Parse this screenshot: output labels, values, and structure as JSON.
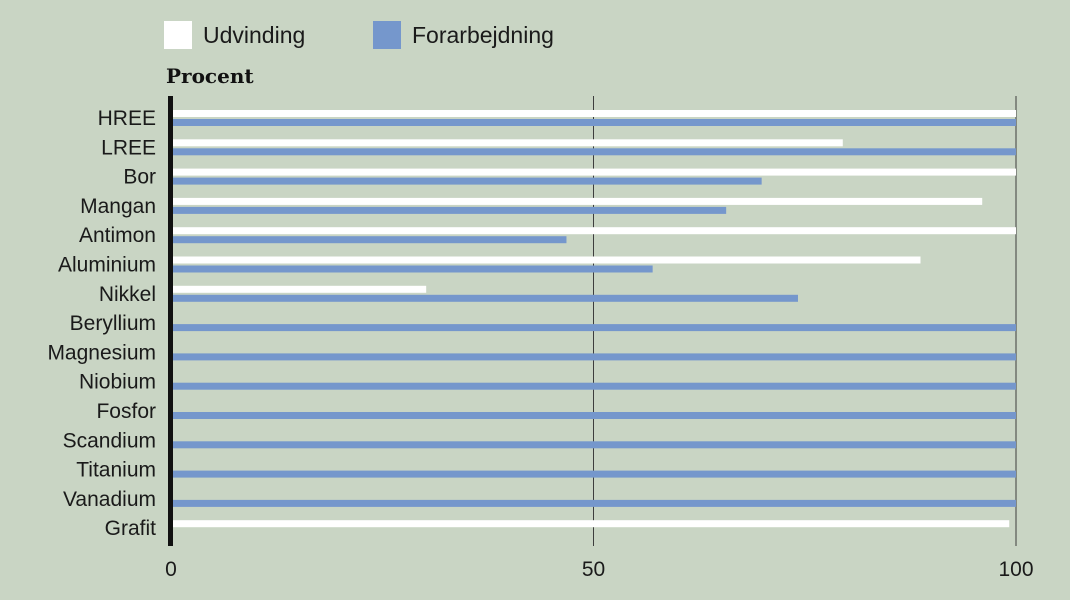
{
  "chart_data": {
    "type": "bar",
    "orientation": "horizontal",
    "ylabel": "Procent",
    "xlim": [
      0,
      100
    ],
    "ticks": [
      "0",
      "50",
      "100"
    ],
    "tick_values": [
      0,
      50,
      100
    ],
    "grid": true,
    "legend_position": "top-left",
    "categories": [
      "HREE",
      "LREE",
      "Bor",
      "Mangan",
      "Antimon",
      "Aluminium",
      "Nikkel",
      "Beryllium",
      "Magnesium",
      "Niobium",
      "Fosfor",
      "Scandium",
      "Titanium",
      "Vanadium",
      "Grafit"
    ],
    "series": [
      {
        "name": "Udvinding",
        "color": "#ffffff",
        "values": [
          100,
          79.5,
          100,
          96,
          100,
          88.7,
          30.2,
          null,
          null,
          null,
          null,
          null,
          null,
          null,
          99.2
        ]
      },
      {
        "name": "Forarbejdning",
        "color": "#7597cc",
        "values": [
          100,
          100,
          69.9,
          65.7,
          46.8,
          57,
          74.2,
          100,
          100,
          100,
          100,
          100,
          100,
          100,
          null
        ]
      }
    ]
  }
}
